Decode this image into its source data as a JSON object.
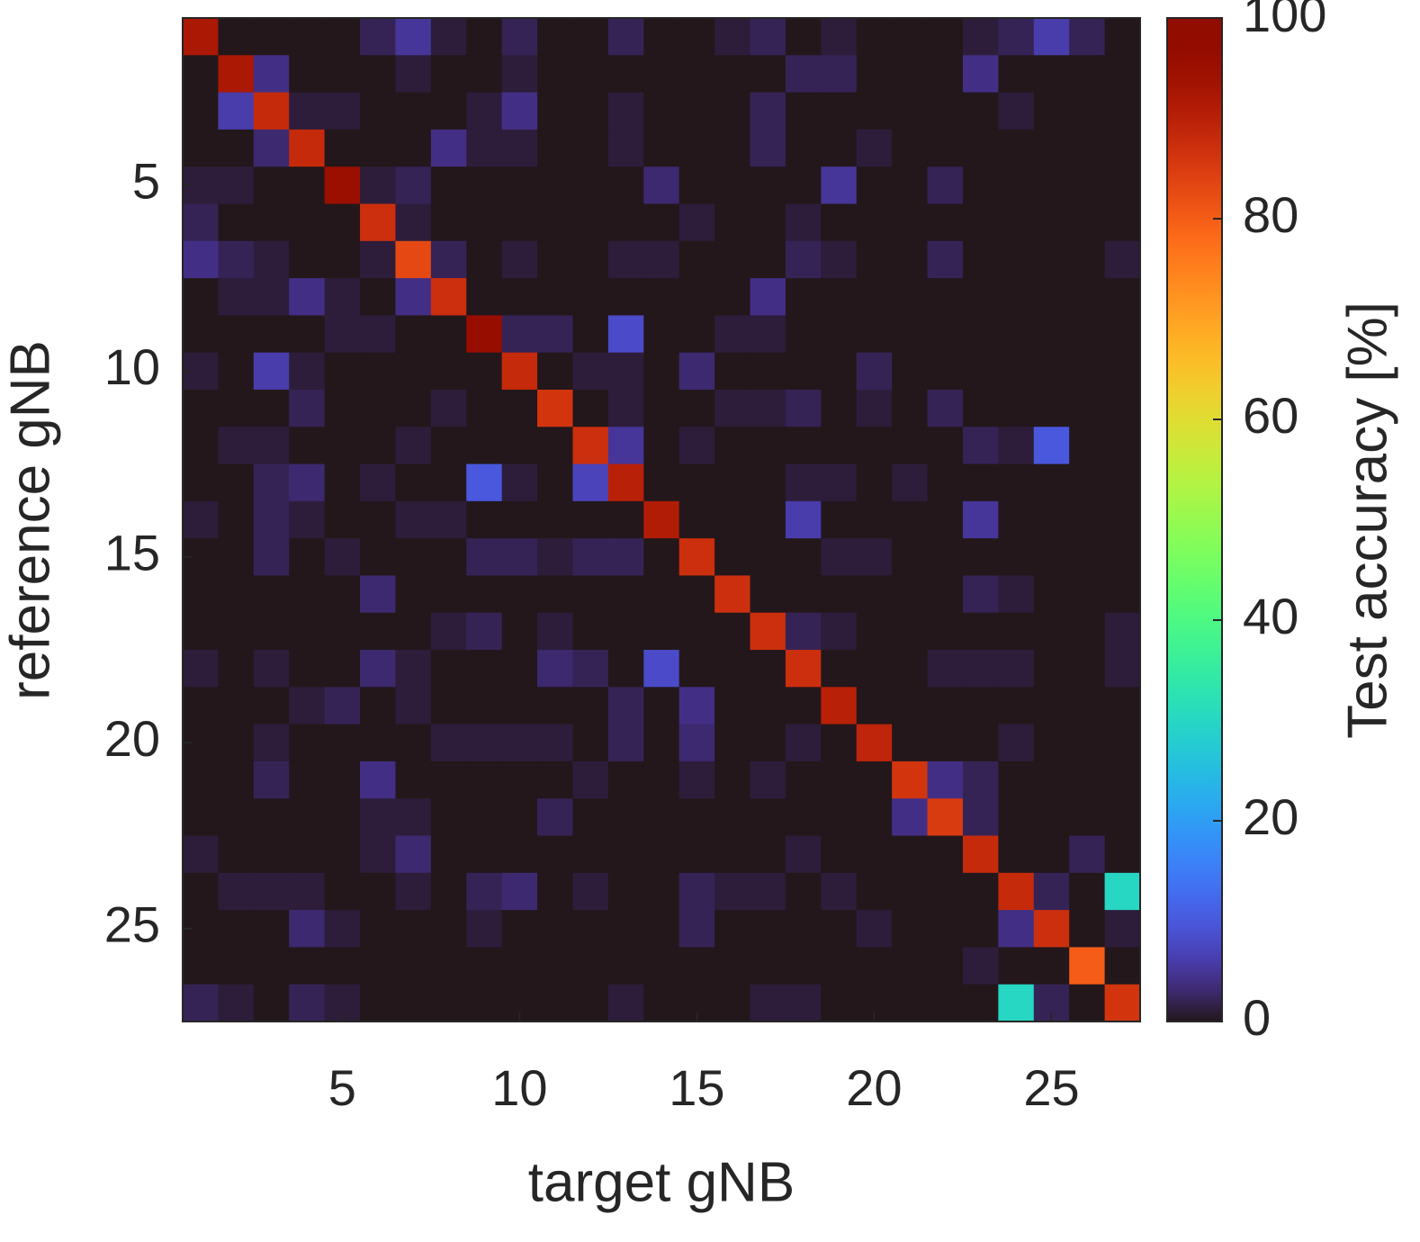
{
  "chart_data": {
    "type": "heatmap",
    "colormap": "turbo",
    "x_label": "target gNB",
    "y_label": "reference gNB",
    "colorbar_label": "Test accuracy [%]",
    "x": [
      1,
      2,
      3,
      4,
      5,
      6,
      7,
      8,
      9,
      10,
      11,
      12,
      13,
      14,
      15,
      16,
      17,
      18,
      19,
      20,
      21,
      22,
      23,
      24,
      25,
      26,
      27
    ],
    "y": [
      1,
      2,
      3,
      4,
      5,
      6,
      7,
      8,
      9,
      10,
      11,
      12,
      13,
      14,
      15,
      16,
      17,
      18,
      19,
      20,
      21,
      22,
      23,
      24,
      25,
      26,
      27
    ],
    "xlim": [
      0.5,
      27.5
    ],
    "ylim": [
      27.5,
      0.5
    ],
    "xticks": [
      5,
      10,
      15,
      20,
      25
    ],
    "yticks": [
      5,
      10,
      15,
      20,
      25
    ],
    "clim": [
      0,
      100
    ],
    "cticks": [
      0,
      20,
      40,
      60,
      80,
      100
    ],
    "z": [
      [
        92,
        0,
        0,
        0,
        0,
        2,
        5,
        1,
        0,
        2,
        0,
        0,
        2,
        0,
        0,
        1,
        2,
        0,
        1,
        0,
        0,
        0,
        1,
        2,
        6,
        2,
        0
      ],
      [
        0,
        92,
        4,
        0,
        0,
        0,
        1,
        0,
        0,
        1,
        0,
        0,
        0,
        0,
        0,
        0,
        0,
        2,
        2,
        0,
        0,
        0,
        4,
        0,
        0,
        0,
        0
      ],
      [
        0,
        6,
        88,
        1,
        1,
        0,
        0,
        0,
        1,
        4,
        0,
        0,
        1,
        0,
        0,
        0,
        2,
        0,
        0,
        0,
        0,
        0,
        0,
        1,
        0,
        0,
        0
      ],
      [
        0,
        0,
        3,
        88,
        0,
        0,
        0,
        4,
        1,
        1,
        0,
        0,
        1,
        0,
        0,
        0,
        2,
        0,
        0,
        1,
        0,
        0,
        0,
        0,
        0,
        0,
        0
      ],
      [
        1,
        1,
        0,
        0,
        95,
        1,
        2,
        0,
        0,
        0,
        0,
        0,
        0,
        3,
        0,
        0,
        0,
        0,
        5,
        0,
        0,
        2,
        0,
        0,
        0,
        0,
        0
      ],
      [
        2,
        0,
        0,
        0,
        0,
        87,
        1,
        0,
        0,
        0,
        0,
        0,
        0,
        0,
        1,
        0,
        0,
        1,
        0,
        0,
        0,
        0,
        0,
        0,
        0,
        0,
        0
      ],
      [
        4,
        2,
        1,
        0,
        0,
        1,
        83,
        2,
        0,
        1,
        0,
        0,
        1,
        1,
        0,
        0,
        0,
        2,
        1,
        0,
        0,
        2,
        0,
        0,
        0,
        0,
        1
      ],
      [
        0,
        1,
        1,
        4,
        1,
        0,
        4,
        87,
        0,
        0,
        0,
        0,
        0,
        0,
        0,
        0,
        4,
        0,
        0,
        0,
        0,
        0,
        0,
        0,
        0,
        0,
        0
      ],
      [
        0,
        0,
        0,
        0,
        1,
        1,
        0,
        0,
        96,
        2,
        2,
        0,
        8,
        0,
        0,
        1,
        1,
        0,
        0,
        0,
        0,
        0,
        0,
        0,
        0,
        0,
        0
      ],
      [
        1,
        0,
        6,
        1,
        0,
        0,
        0,
        0,
        0,
        88,
        0,
        1,
        1,
        0,
        3,
        0,
        0,
        0,
        0,
        2,
        0,
        0,
        0,
        0,
        0,
        0,
        0
      ],
      [
        0,
        0,
        0,
        2,
        0,
        0,
        0,
        1,
        0,
        0,
        86,
        0,
        1,
        0,
        0,
        1,
        1,
        2,
        0,
        1,
        0,
        2,
        0,
        0,
        0,
        0,
        0
      ],
      [
        0,
        1,
        1,
        0,
        0,
        0,
        1,
        0,
        0,
        0,
        0,
        87,
        5,
        0,
        1,
        0,
        0,
        0,
        0,
        0,
        0,
        0,
        2,
        1,
        10,
        0,
        0
      ],
      [
        0,
        0,
        2,
        3,
        0,
        1,
        0,
        0,
        10,
        1,
        0,
        7,
        90,
        0,
        0,
        0,
        0,
        1,
        1,
        0,
        1,
        0,
        0,
        0,
        0,
        0,
        0
      ],
      [
        1,
        0,
        2,
        1,
        0,
        0,
        1,
        1,
        0,
        0,
        0,
        0,
        0,
        91,
        0,
        0,
        0,
        6,
        0,
        0,
        0,
        0,
        5,
        0,
        0,
        0,
        0
      ],
      [
        0,
        0,
        2,
        0,
        1,
        0,
        0,
        0,
        2,
        2,
        1,
        2,
        2,
        0,
        87,
        0,
        0,
        0,
        1,
        1,
        0,
        0,
        0,
        0,
        0,
        0,
        0
      ],
      [
        0,
        0,
        0,
        0,
        0,
        3,
        0,
        0,
        0,
        0,
        0,
        0,
        0,
        0,
        0,
        87,
        0,
        0,
        0,
        0,
        0,
        0,
        2,
        1,
        0,
        0,
        0
      ],
      [
        0,
        0,
        0,
        0,
        0,
        0,
        0,
        1,
        2,
        0,
        1,
        0,
        0,
        0,
        0,
        0,
        87,
        2,
        1,
        0,
        0,
        0,
        0,
        0,
        0,
        0,
        1
      ],
      [
        1,
        0,
        1,
        0,
        0,
        3,
        1,
        0,
        0,
        0,
        3,
        2,
        0,
        8,
        0,
        0,
        0,
        87,
        0,
        0,
        0,
        1,
        1,
        1,
        0,
        0,
        1
      ],
      [
        0,
        0,
        0,
        1,
        2,
        0,
        1,
        0,
        0,
        0,
        0,
        0,
        2,
        0,
        4,
        0,
        0,
        0,
        90,
        0,
        0,
        0,
        0,
        0,
        0,
        0,
        0
      ],
      [
        0,
        0,
        1,
        0,
        0,
        0,
        0,
        1,
        1,
        1,
        1,
        0,
        2,
        0,
        3,
        0,
        0,
        1,
        0,
        89,
        0,
        0,
        0,
        1,
        0,
        0,
        0
      ],
      [
        0,
        0,
        2,
        0,
        0,
        4,
        0,
        0,
        0,
        0,
        0,
        1,
        0,
        0,
        1,
        0,
        1,
        0,
        0,
        0,
        86,
        4,
        2,
        0,
        0,
        0,
        0
      ],
      [
        0,
        0,
        0,
        0,
        0,
        1,
        1,
        0,
        0,
        0,
        2,
        0,
        0,
        0,
        0,
        0,
        0,
        0,
        0,
        0,
        4,
        85,
        2,
        0,
        0,
        0,
        0
      ],
      [
        1,
        0,
        0,
        0,
        0,
        1,
        3,
        0,
        0,
        0,
        0,
        0,
        0,
        0,
        0,
        0,
        0,
        1,
        0,
        0,
        0,
        0,
        88,
        0,
        0,
        2,
        0
      ],
      [
        0,
        1,
        1,
        1,
        0,
        0,
        1,
        0,
        2,
        3,
        0,
        1,
        0,
        0,
        2,
        1,
        1,
        0,
        1,
        0,
        0,
        0,
        0,
        88,
        2,
        0,
        30
      ],
      [
        0,
        0,
        0,
        3,
        1,
        0,
        0,
        0,
        1,
        0,
        0,
        0,
        0,
        0,
        2,
        0,
        0,
        0,
        0,
        1,
        0,
        0,
        0,
        4,
        87,
        0,
        1
      ],
      [
        0,
        0,
        0,
        0,
        0,
        0,
        0,
        0,
        0,
        0,
        0,
        0,
        0,
        0,
        0,
        0,
        0,
        0,
        0,
        0,
        0,
        0,
        1,
        0,
        0,
        80,
        0
      ],
      [
        2,
        1,
        0,
        2,
        1,
        0,
        0,
        0,
        0,
        0,
        0,
        0,
        1,
        0,
        0,
        0,
        1,
        1,
        0,
        0,
        0,
        0,
        0,
        30,
        2,
        0,
        86
      ]
    ]
  }
}
